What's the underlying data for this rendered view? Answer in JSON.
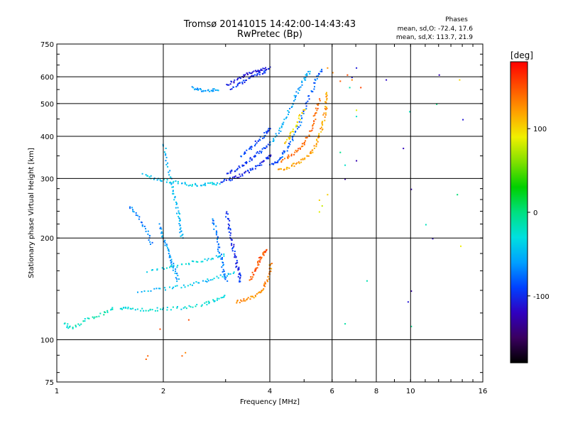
{
  "chart_data": {
    "type": "scatter",
    "title": "Tromsø 20141015 14:42:00-14:43:43",
    "subtitle": "RwPretec (Bp)",
    "xlabel": "Frequency [MHz]",
    "ylabel": "Stationary phase Virtual Height [km]",
    "x_scale": "log",
    "y_scale": "log",
    "xlim": [
      1,
      16
    ],
    "ylim": [
      75,
      750
    ],
    "x_ticks": [
      1,
      2,
      4,
      6,
      8,
      10,
      16
    ],
    "x_tick_labels": [
      "1",
      "2",
      "4",
      "6",
      "8",
      "10",
      "16"
    ],
    "y_ticks": [
      75,
      100,
      200,
      300,
      400,
      500,
      600,
      750
    ],
    "y_tick_labels": [
      "75",
      "100",
      "200",
      "300",
      "400",
      "500",
      "600",
      "750"
    ],
    "grid": true,
    "stats": {
      "heading": "Phases",
      "line_o": "mean, sd,O: -72.4, 17.6",
      "line_x": "mean, sd,X: 113.7, 21.9"
    },
    "colorbar": {
      "label": "[deg]",
      "range": [
        -180,
        180
      ],
      "ticks": [
        100,
        0,
        -100
      ],
      "tick_labels": [
        "100",
        "0",
        "-100"
      ],
      "colormap": [
        "#000000",
        "#3a0060",
        "#3000c0",
        "#0040ff",
        "#00a0ff",
        "#00e0e0",
        "#00e080",
        "#00d000",
        "#80e000",
        "#f0f000",
        "#ffa000",
        "#ff5000",
        "#ff0000"
      ]
    },
    "series": [
      {
        "description_shape": "path",
        "phase": -110,
        "points": [
          [
            3.0,
            570
          ],
          [
            3.2,
            590
          ],
          [
            3.4,
            610
          ],
          [
            3.6,
            625
          ],
          [
            3.8,
            635
          ],
          [
            4.0,
            640
          ]
        ]
      },
      {
        "description_shape": "path",
        "phase": -100,
        "points": [
          [
            3.1,
            555
          ],
          [
            3.3,
            575
          ],
          [
            3.5,
            600
          ],
          [
            3.7,
            615
          ],
          [
            3.9,
            625
          ]
        ]
      },
      {
        "description_shape": "path",
        "phase": -60,
        "points": [
          [
            2.4,
            560
          ],
          [
            2.55,
            550
          ],
          [
            2.7,
            548
          ],
          [
            2.85,
            552
          ]
        ]
      },
      {
        "description_shape": "path",
        "phase": -100,
        "points": [
          [
            2.9,
            295
          ],
          [
            3.1,
            300
          ],
          [
            3.3,
            308
          ],
          [
            3.5,
            318
          ],
          [
            3.7,
            330
          ],
          [
            3.9,
            345
          ],
          [
            4.0,
            355
          ]
        ]
      },
      {
        "description_shape": "path",
        "phase": -95,
        "points": [
          [
            3.0,
            310
          ],
          [
            3.2,
            320
          ],
          [
            3.4,
            335
          ],
          [
            3.6,
            350
          ],
          [
            3.8,
            368
          ],
          [
            4.0,
            385
          ]
        ]
      },
      {
        "description_shape": "path",
        "phase": -90,
        "points": [
          [
            3.3,
            350
          ],
          [
            3.5,
            370
          ],
          [
            3.7,
            390
          ],
          [
            3.9,
            410
          ],
          [
            4.0,
            425
          ]
        ]
      },
      {
        "description_shape": "path",
        "phase": -80,
        "points": [
          [
            4.0,
            330
          ],
          [
            4.2,
            340
          ],
          [
            4.4,
            360
          ],
          [
            4.6,
            390
          ],
          [
            4.8,
            430
          ],
          [
            5.0,
            480
          ],
          [
            5.2,
            540
          ],
          [
            5.4,
            600
          ],
          [
            5.6,
            640
          ]
        ]
      },
      {
        "description_shape": "path",
        "phase": -55,
        "points": [
          [
            4.0,
            380
          ],
          [
            4.2,
            410
          ],
          [
            4.4,
            450
          ],
          [
            4.6,
            500
          ],
          [
            4.8,
            550
          ],
          [
            5.0,
            600
          ],
          [
            5.2,
            630
          ]
        ]
      },
      {
        "description_shape": "path",
        "phase": 120,
        "points": [
          [
            4.2,
            320
          ],
          [
            4.5,
            325
          ],
          [
            4.8,
            335
          ],
          [
            5.1,
            350
          ],
          [
            5.3,
            370
          ],
          [
            5.5,
            400
          ],
          [
            5.6,
            430
          ],
          [
            5.7,
            470
          ],
          [
            5.75,
            510
          ],
          [
            5.8,
            550
          ]
        ]
      },
      {
        "description_shape": "path",
        "phase": 140,
        "points": [
          [
            4.3,
            340
          ],
          [
            4.6,
            355
          ],
          [
            4.9,
            375
          ],
          [
            5.1,
            400
          ],
          [
            5.3,
            440
          ],
          [
            5.4,
            480
          ],
          [
            5.5,
            520
          ]
        ]
      },
      {
        "description_shape": "path",
        "phase": 100,
        "points": [
          [
            4.4,
            380
          ],
          [
            4.6,
            410
          ],
          [
            4.8,
            450
          ],
          [
            5.0,
            490
          ]
        ]
      },
      {
        "description_shape": "path",
        "phase": -40,
        "points": [
          [
            1.75,
            310
          ],
          [
            1.9,
            300
          ],
          [
            2.1,
            295
          ],
          [
            2.3,
            290
          ],
          [
            2.5,
            288
          ],
          [
            2.7,
            290
          ],
          [
            2.9,
            292
          ]
        ]
      },
      {
        "description_shape": "path",
        "phase": -50,
        "points": [
          [
            2.0,
            380
          ],
          [
            2.05,
            330
          ],
          [
            2.1,
            290
          ],
          [
            2.15,
            260
          ],
          [
            2.2,
            235
          ],
          [
            2.22,
            215
          ],
          [
            2.25,
            200
          ]
        ]
      },
      {
        "description_shape": "path",
        "phase": -60,
        "points": [
          [
            1.95,
            220
          ],
          [
            2.0,
            200
          ],
          [
            2.05,
            185
          ],
          [
            2.1,
            170
          ],
          [
            2.15,
            160
          ],
          [
            2.2,
            150
          ]
        ]
      },
      {
        "description_shape": "path",
        "phase": -30,
        "points": [
          [
            1.5,
            125
          ],
          [
            1.6,
            124
          ],
          [
            1.8,
            123
          ],
          [
            2.0,
            124
          ],
          [
            2.3,
            125
          ],
          [
            2.6,
            128
          ],
          [
            2.8,
            132
          ],
          [
            3.0,
            135
          ]
        ]
      },
      {
        "description_shape": "path",
        "phase": -45,
        "points": [
          [
            1.7,
            140
          ],
          [
            2.0,
            142
          ],
          [
            2.3,
            145
          ],
          [
            2.6,
            150
          ],
          [
            2.9,
            155
          ],
          [
            3.2,
            160
          ]
        ]
      },
      {
        "description_shape": "path",
        "phase": -35,
        "points": [
          [
            1.8,
            160
          ],
          [
            2.1,
            165
          ],
          [
            2.4,
            170
          ],
          [
            2.7,
            175
          ],
          [
            3.0,
            180
          ]
        ]
      },
      {
        "description_shape": "path",
        "phase": -70,
        "points": [
          [
            2.75,
            230
          ],
          [
            2.8,
            210
          ],
          [
            2.85,
            190
          ],
          [
            2.9,
            175
          ],
          [
            2.95,
            160
          ],
          [
            3.0,
            150
          ]
        ]
      },
      {
        "description_shape": "path",
        "phase": -100,
        "points": [
          [
            3.0,
            240
          ],
          [
            3.05,
            220
          ],
          [
            3.1,
            200
          ],
          [
            3.15,
            185
          ],
          [
            3.2,
            170
          ],
          [
            3.25,
            158
          ],
          [
            3.3,
            148
          ]
        ]
      },
      {
        "description_shape": "path",
        "phase": 130,
        "points": [
          [
            3.2,
            130
          ],
          [
            3.4,
            132
          ],
          [
            3.6,
            135
          ],
          [
            3.8,
            140
          ],
          [
            3.9,
            150
          ],
          [
            4.0,
            160
          ],
          [
            4.0,
            170
          ]
        ]
      },
      {
        "description_shape": "path",
        "phase": 150,
        "points": [
          [
            3.5,
            150
          ],
          [
            3.6,
            160
          ],
          [
            3.7,
            170
          ],
          [
            3.8,
            180
          ],
          [
            3.9,
            185
          ]
        ]
      },
      {
        "description_shape": "path",
        "phase": -20,
        "points": [
          [
            1.05,
            112
          ],
          [
            1.1,
            108
          ],
          [
            1.2,
            115
          ],
          [
            1.35,
            120
          ],
          [
            1.45,
            125
          ]
        ]
      },
      {
        "description_shape": "path",
        "phase": -70,
        "points": [
          [
            1.6,
            250
          ],
          [
            1.7,
            230
          ],
          [
            1.8,
            210
          ],
          [
            1.85,
            190
          ]
        ]
      },
      {
        "description_shape": "scatter",
        "phase": 140,
        "points": [
          [
            1.78,
            88
          ],
          [
            1.8,
            90
          ],
          [
            2.25,
            90
          ],
          [
            2.3,
            92
          ],
          [
            1.95,
            108
          ],
          [
            2.35,
            115
          ],
          [
            6.3,
            585
          ],
          [
            6.0,
            620
          ],
          [
            5.8,
            640
          ],
          [
            6.6,
            610
          ],
          [
            7.2,
            560
          ],
          [
            6.8,
            590
          ]
        ]
      },
      {
        "description_shape": "scatter",
        "phase": -120,
        "points": [
          [
            6.5,
            300
          ],
          [
            7.0,
            340
          ],
          [
            8.5,
            590
          ],
          [
            9.5,
            370
          ],
          [
            10.0,
            280
          ],
          [
            11.5,
            200
          ],
          [
            12.0,
            610
          ],
          [
            14.0,
            450
          ],
          [
            10.0,
            140
          ],
          [
            7.0,
            640
          ],
          [
            6.8,
            600
          ],
          [
            9.8,
            130
          ]
        ]
      },
      {
        "description_shape": "scatter",
        "phase": -10,
        "points": [
          [
            6.3,
            360
          ],
          [
            6.5,
            330
          ],
          [
            6.7,
            560
          ],
          [
            7.0,
            460
          ],
          [
            10.0,
            110
          ],
          [
            13.5,
            270
          ],
          [
            11.0,
            220
          ],
          [
            9.9,
            475
          ],
          [
            11.8,
            500
          ],
          [
            6.5,
            112
          ],
          [
            7.5,
            150
          ]
        ]
      },
      {
        "description_shape": "scatter",
        "phase": 90,
        "points": [
          [
            5.5,
            260
          ],
          [
            5.6,
            250
          ],
          [
            5.8,
            270
          ],
          [
            13.8,
            190
          ],
          [
            7.0,
            480
          ],
          [
            5.5,
            240
          ],
          [
            13.7,
            590
          ]
        ]
      }
    ]
  }
}
